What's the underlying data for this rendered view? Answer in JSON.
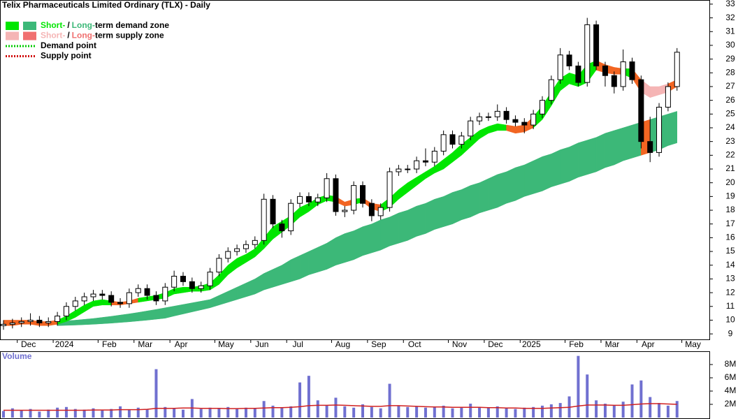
{
  "chart_data": {
    "type": "candlestick",
    "title": "Telix Pharmaceuticals Limited Ordinary (TLX) - Daily",
    "categories": [
      null,
      null,
      "Dec",
      null,
      null,
      null,
      "2024",
      null,
      null,
      null,
      null,
      "Feb",
      null,
      null,
      null,
      "Mar",
      null,
      null,
      null,
      "Apr",
      null,
      null,
      null,
      null,
      "May",
      null,
      null,
      null,
      "Jun",
      null,
      null,
      null,
      "Jul",
      null,
      null,
      null,
      null,
      "Aug",
      null,
      null,
      null,
      "Sep",
      null,
      null,
      null,
      "Oct",
      null,
      null,
      null,
      null,
      "Nov",
      null,
      null,
      null,
      "Dec",
      null,
      null,
      null,
      "2025",
      null,
      null,
      null,
      null,
      "Feb",
      null,
      null,
      null,
      "Mar",
      null,
      null,
      null,
      "Apr",
      null,
      null,
      null,
      null,
      "May"
    ],
    "open": [
      9.6,
      9.7,
      9.8,
      9.9,
      10.0,
      9.8,
      9.9,
      10.3,
      11.0,
      11.4,
      11.7,
      11.9,
      11.8,
      11.3,
      11.2,
      12.0,
      12.3,
      11.8,
      11.4,
      12.4,
      13.2,
      12.8,
      12.3,
      12.5,
      13.5,
      14.5,
      15.0,
      15.2,
      15.5,
      15.8,
      18.8,
      17.0,
      16.5,
      18.5,
      19.0,
      18.6,
      18.9,
      20.3,
      17.9,
      18.0,
      19.8,
      18.5,
      17.6,
      18.2,
      20.8,
      21.0,
      21.0,
      21.6,
      21.5,
      22.3,
      23.5,
      22.8,
      23.4,
      24.5,
      24.8,
      24.8,
      25.2,
      24.6,
      24.4,
      24.2,
      25.0,
      26.0,
      27.5,
      29.3,
      28.5,
      27.3,
      31.5,
      28.5,
      27.8,
      27.0,
      28.8,
      27.5,
      23.0,
      22.2,
      25.5,
      27.0,
      null
    ],
    "high": [
      10.0,
      10.1,
      10.2,
      10.5,
      10.3,
      10.2,
      10.6,
      11.3,
      11.7,
      12.0,
      12.2,
      12.2,
      12.1,
      11.6,
      12.3,
      12.6,
      12.6,
      12.1,
      12.7,
      13.6,
      13.5,
      13.1,
      12.8,
      13.8,
      14.8,
      15.3,
      15.5,
      15.8,
      16.1,
      19.2,
      19.1,
      17.3,
      18.8,
      19.3,
      19.3,
      19.2,
      20.7,
      20.6,
      18.3,
      20.1,
      20.1,
      18.8,
      18.5,
      21.1,
      21.3,
      21.3,
      21.9,
      22.5,
      22.6,
      23.8,
      23.8,
      23.7,
      24.8,
      25.1,
      25.1,
      25.7,
      25.5,
      24.9,
      24.7,
      25.3,
      26.3,
      27.8,
      29.8,
      29.6,
      28.8,
      32.0,
      31.8,
      28.8,
      28.1,
      29.7,
      29.1,
      27.8,
      24.8,
      25.8,
      27.3,
      29.8,
      null
    ],
    "low": [
      9.3,
      9.4,
      9.5,
      9.6,
      9.5,
      9.5,
      9.6,
      10.0,
      10.7,
      11.1,
      11.4,
      11.5,
      11.0,
      10.9,
      10.9,
      11.7,
      11.5,
      11.1,
      11.1,
      12.1,
      12.5,
      12.0,
      12.0,
      12.2,
      13.2,
      14.2,
      14.7,
      14.9,
      15.2,
      15.5,
      16.7,
      16.0,
      16.2,
      18.2,
      18.3,
      18.3,
      18.6,
      17.6,
      17.5,
      17.7,
      18.2,
      17.2,
      17.3,
      17.9,
      20.5,
      20.7,
      20.7,
      21.2,
      21.2,
      22.0,
      22.5,
      22.5,
      23.1,
      24.2,
      24.5,
      24.5,
      24.3,
      24.1,
      23.6,
      23.9,
      24.7,
      25.7,
      27.2,
      28.2,
      27.0,
      27.0,
      28.2,
      27.0,
      26.5,
      26.7,
      27.2,
      22.5,
      21.5,
      21.9,
      25.2,
      26.7,
      null
    ],
    "close": [
      9.7,
      9.8,
      9.9,
      10.0,
      9.8,
      9.9,
      10.3,
      11.0,
      11.4,
      11.7,
      11.9,
      11.8,
      11.3,
      11.2,
      12.0,
      12.3,
      11.8,
      11.4,
      12.4,
      13.2,
      12.8,
      12.3,
      12.5,
      13.5,
      14.5,
      15.0,
      15.2,
      15.5,
      15.8,
      18.8,
      17.0,
      16.5,
      18.5,
      19.0,
      18.6,
      18.9,
      20.3,
      17.9,
      18.0,
      19.8,
      18.5,
      17.6,
      18.2,
      20.8,
      21.0,
      21.0,
      21.6,
      21.5,
      22.3,
      23.5,
      22.8,
      23.4,
      24.5,
      24.8,
      24.8,
      25.2,
      24.6,
      24.4,
      24.2,
      25.0,
      26.0,
      27.5,
      29.3,
      28.5,
      27.3,
      31.5,
      28.5,
      27.8,
      27.0,
      28.8,
      27.5,
      23.0,
      22.2,
      25.5,
      27.0,
      29.5,
      null
    ],
    "zones": [
      {
        "upper": [
          null,
          null,
          null,
          null,
          null,
          null,
          9.9,
          9.95,
          10.0,
          10.06,
          10.12,
          10.2,
          10.28,
          10.37,
          10.46,
          10.56,
          10.67,
          10.78,
          10.9,
          11.02,
          11.14,
          11.26,
          11.38,
          11.5,
          11.8,
          12.1,
          12.4,
          12.7,
          13.0,
          13.4,
          13.7,
          14.0,
          14.4,
          14.7,
          15.0,
          15.3,
          15.6,
          16.0,
          16.3,
          16.5,
          16.8,
          17.0,
          17.3,
          17.5,
          17.8,
          18.0,
          18.3,
          18.5,
          18.8,
          19.0,
          19.3,
          19.5,
          19.8,
          20.0,
          20.3,
          20.6,
          20.8,
          21.1,
          21.3,
          21.6,
          21.9,
          22.1,
          22.4,
          22.6,
          22.9,
          23.1,
          23.3,
          23.6,
          23.8,
          24.0,
          24.2,
          24.4,
          24.6,
          24.8,
          25.0,
          25.2,
          null
        ],
        "lower": [
          null,
          null,
          null,
          null,
          null,
          null,
          9.6,
          9.62,
          9.64,
          9.67,
          9.7,
          9.74,
          9.78,
          9.83,
          9.88,
          9.94,
          10.0,
          10.07,
          10.14,
          10.3,
          10.45,
          10.6,
          10.75,
          10.9,
          11.1,
          11.3,
          11.5,
          11.7,
          11.9,
          12.2,
          12.4,
          12.6,
          12.8,
          13.0,
          13.3,
          13.5,
          13.7,
          14.0,
          14.2,
          14.4,
          14.7,
          14.9,
          15.1,
          15.4,
          15.6,
          15.8,
          16.1,
          16.3,
          16.6,
          16.8,
          17.0,
          17.3,
          17.5,
          17.8,
          18.0,
          18.2,
          18.5,
          18.7,
          19.0,
          19.2,
          19.4,
          19.7,
          19.9,
          20.1,
          20.4,
          20.6,
          20.8,
          21.1,
          21.3,
          21.6,
          21.8,
          22.0,
          22.2,
          22.4,
          22.7,
          22.9,
          null
        ],
        "colors": [
          null,
          null,
          null,
          null,
          null,
          null,
          "#3cb878",
          "#3cb878",
          "#3cb878",
          "#3cb878",
          "#3cb878",
          "#3cb878",
          "#3cb878",
          "#3cb878",
          "#3cb878",
          "#3cb878",
          "#3cb878",
          "#3cb878",
          "#3cb878",
          "#3cb878",
          "#3cb878",
          "#3cb878",
          "#3cb878",
          "#3cb878",
          "#3cb878",
          "#3cb878",
          "#3cb878",
          "#3cb878",
          "#3cb878",
          "#3cb878",
          "#3cb878",
          "#3cb878",
          "#3cb878",
          "#3cb878",
          "#3cb878",
          "#3cb878",
          "#3cb878",
          "#3cb878",
          "#3cb878",
          "#3cb878",
          "#3cb878",
          "#3cb878",
          "#3cb878",
          "#3cb878",
          "#3cb878",
          "#3cb878",
          "#3cb878",
          "#3cb878",
          "#3cb878",
          "#3cb878",
          "#3cb878",
          "#3cb878",
          "#3cb878",
          "#3cb878",
          "#3cb878",
          "#3cb878",
          "#3cb878",
          "#3cb878",
          "#3cb878",
          "#3cb878",
          "#3cb878",
          "#3cb878",
          "#3cb878",
          "#3cb878",
          "#3cb878",
          "#3cb878",
          "#3cb878",
          "#3cb878",
          "#3cb878",
          "#3cb878",
          "#3cb878",
          "#f26522",
          "#3cb878",
          "#3cb878",
          "#3cb878",
          null,
          null
        ]
      },
      {
        "upper": [
          10.0,
          10.0,
          10.0,
          10.0,
          9.9,
          9.9,
          10.0,
          10.3,
          10.7,
          11.1,
          11.4,
          11.5,
          11.4,
          11.3,
          11.4,
          11.6,
          11.7,
          11.8,
          12.0,
          12.3,
          12.4,
          12.4,
          12.5,
          12.7,
          13.3,
          14.0,
          14.5,
          14.8,
          15.2,
          16.0,
          16.8,
          17.2,
          17.6,
          18.2,
          18.5,
          18.9,
          19.1,
          19.0,
          18.6,
          18.8,
          18.9,
          18.5,
          18.4,
          18.9,
          19.5,
          20.0,
          20.4,
          20.8,
          21.2,
          21.7,
          22.2,
          22.8,
          23.3,
          23.8,
          24.1,
          24.3,
          24.2,
          24.1,
          24.2,
          24.8,
          25.6,
          26.6,
          27.6,
          28.0,
          27.8,
          28.6,
          28.9,
          28.6,
          28.4,
          28.3,
          28.3,
          27.5,
          27.0,
          27.0,
          27.2,
          27.5,
          null
        ],
        "lower": [
          9.6,
          9.6,
          9.7,
          9.7,
          9.6,
          9.6,
          9.7,
          9.9,
          10.2,
          10.6,
          11.0,
          11.1,
          11.1,
          11.1,
          11.2,
          11.3,
          11.4,
          11.5,
          11.6,
          11.9,
          12.0,
          12.1,
          12.1,
          12.2,
          12.6,
          13.3,
          13.8,
          14.2,
          14.6,
          15.2,
          15.9,
          16.4,
          16.9,
          17.5,
          17.9,
          18.4,
          18.7,
          18.6,
          18.3,
          18.4,
          18.6,
          18.1,
          17.9,
          18.2,
          18.8,
          19.3,
          19.8,
          20.3,
          20.7,
          21.0,
          21.5,
          22.0,
          22.6,
          23.2,
          23.6,
          23.8,
          23.8,
          23.6,
          23.7,
          24.0,
          24.6,
          25.6,
          26.7,
          27.2,
          27.0,
          27.3,
          28.2,
          28.0,
          27.9,
          27.9,
          27.6,
          26.6,
          26.2,
          26.4,
          26.6,
          27.0,
          null
        ],
        "colors": [
          "#f26522",
          "#f26522",
          "#f26522",
          "#f26522",
          "#f26522",
          "#f26522",
          "#00e600",
          "#00e600",
          "#00e600",
          "#00e600",
          "#00e600",
          "#00e600",
          "#f26522",
          "#f26522",
          "#f26522",
          "#00e600",
          "#00e600",
          "#00e600",
          "#00e600",
          "#00e600",
          "#00e600",
          "#00e600",
          "#00e600",
          "#00e600",
          "#00e600",
          "#00e600",
          "#00e600",
          "#00e600",
          "#00e600",
          "#00e600",
          "#00e600",
          "#00e600",
          "#00e600",
          "#00e600",
          "#00e600",
          "#00e600",
          "#00e600",
          "#f26522",
          "#f26522",
          "#00e600",
          "#f26522",
          "#f26522",
          "#00e600",
          "#00e600",
          "#00e600",
          "#00e600",
          "#00e600",
          "#00e600",
          "#00e600",
          "#00e600",
          "#00e600",
          "#00e600",
          "#00e600",
          "#00e600",
          "#00e600",
          "#00e600",
          "#f26522",
          "#f26522",
          "#f26522",
          "#00e600",
          "#00e600",
          "#00e600",
          "#00e600",
          "#00e600",
          "#00e600",
          "#00e600",
          "#f26522",
          "#f26522",
          "#f26522",
          "#00e600",
          "#f26522",
          "#f5b5b5",
          "#f5b5b5",
          "#f5b5b5",
          "#f26522",
          "#f26522",
          null
        ]
      }
    ],
    "ylim": [
      8.6,
      33.3
    ],
    "yticks": [
      9,
      10,
      11,
      12,
      13,
      14,
      15,
      16,
      17,
      18,
      19,
      20,
      21,
      22,
      23,
      24,
      25,
      26,
      27,
      28,
      29,
      30,
      31,
      32,
      33
    ],
    "legend": [
      {
        "texts": [
          "Short-",
          "/",
          "Long-",
          "term demand zone"
        ],
        "colors": [
          "#00e600",
          "#3cb878"
        ]
      },
      {
        "texts": [
          "Short-",
          "/",
          "Long-",
          "term supply zone"
        ],
        "colors": [
          "#f5b5b5",
          "#f07070"
        ]
      },
      {
        "texts": [
          "Demand point"
        ],
        "colors": [
          "#00cc00"
        ]
      },
      {
        "texts": [
          "Supply point"
        ],
        "colors": [
          "#d00000"
        ]
      }
    ],
    "volume": {
      "label": "Volume",
      "color": "#7070d0",
      "average_color": "#d02020",
      "values": [
        1000000,
        1400000,
        1100000,
        1300000,
        900000,
        1200000,
        1500000,
        1600000,
        1300000,
        1200000,
        1400000,
        1100000,
        1300000,
        1700000,
        1200000,
        1500000,
        1300000,
        7300000,
        1600000,
        1400000,
        1200000,
        2800000,
        1300000,
        1500000,
        1400000,
        1600000,
        1300000,
        1500000,
        1400000,
        2500000,
        1800000,
        1500000,
        1700000,
        5300000,
        6300000,
        2600000,
        1800000,
        3000000,
        1700000,
        1500000,
        2000000,
        1600000,
        1400000,
        5100000,
        1800000,
        1600000,
        1700000,
        1500000,
        1600000,
        1800000,
        1400000,
        1500000,
        2100000,
        1600000,
        1500000,
        1700000,
        1400000,
        1300000,
        1500000,
        1600000,
        1800000,
        2000000,
        2200000,
        3200000,
        9300000,
        6500000,
        2600000,
        2100000,
        1800000,
        2400000,
        5000000,
        5600000,
        3100000,
        2200000,
        1800000,
        2500000,
        null
      ],
      "average": [
        1100000,
        1100000,
        1100000,
        1100000,
        1100000,
        1100000,
        1100000,
        1100000,
        1100000,
        1100000,
        1150000,
        1150000,
        1150000,
        1200000,
        1200000,
        1200000,
        1250000,
        1400000,
        1400000,
        1400000,
        1450000,
        1450000,
        1400000,
        1400000,
        1400000,
        1350000,
        1350000,
        1400000,
        1400000,
        1450000,
        1500000,
        1500000,
        1550000,
        1650000,
        1800000,
        1850000,
        1850000,
        1900000,
        1850000,
        1800000,
        1750000,
        1700000,
        1700000,
        1800000,
        1800000,
        1750000,
        1700000,
        1650000,
        1600000,
        1600000,
        1550000,
        1550000,
        1550000,
        1550000,
        1500000,
        1500000,
        1450000,
        1450000,
        1400000,
        1400000,
        1400000,
        1450000,
        1500000,
        1550000,
        1750000,
        1900000,
        1900000,
        1900000,
        1850000,
        1850000,
        1950000,
        2050000,
        2100000,
        2100000,
        2050000,
        2000000,
        null
      ],
      "ylim": [
        0,
        10000000
      ],
      "yticks": [
        {
          "value": 2000000,
          "label": "2M"
        },
        {
          "value": 4000000,
          "label": "4M"
        },
        {
          "value": 6000000,
          "label": "6M"
        },
        {
          "value": 8000000,
          "label": "8M"
        }
      ]
    }
  }
}
